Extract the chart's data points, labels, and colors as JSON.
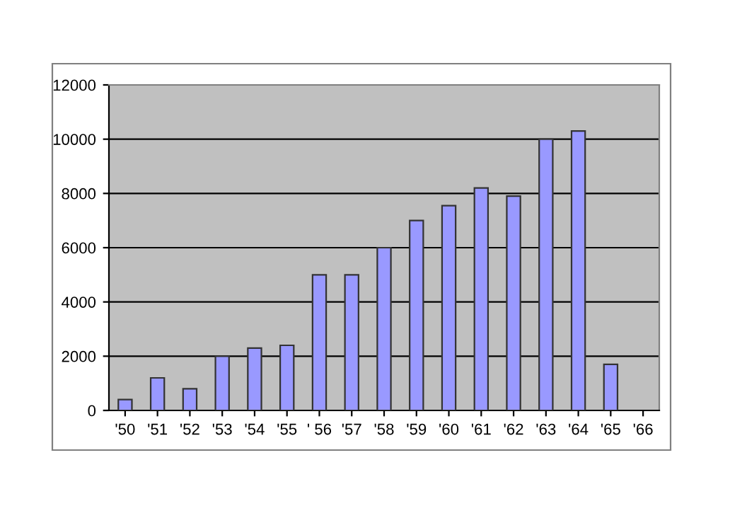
{
  "chart_data": {
    "type": "bar",
    "categories": [
      "'50",
      "'51",
      "'52",
      "'53",
      "'54",
      "'55",
      "' 56",
      "'57",
      "'58",
      "'59",
      "'60",
      "'61",
      "'62",
      "'63",
      "'64",
      "'65",
      "'66"
    ],
    "values": [
      400,
      1200,
      800,
      2000,
      2300,
      2400,
      5000,
      5000,
      6000,
      7000,
      7550,
      8200,
      7900,
      10000,
      10300,
      1700,
      null
    ],
    "color": "#9999ff",
    "ylim": [
      0,
      12000
    ],
    "yticks": [
      0,
      2000,
      4000,
      6000,
      8000,
      10000,
      12000
    ],
    "grid": "y"
  }
}
